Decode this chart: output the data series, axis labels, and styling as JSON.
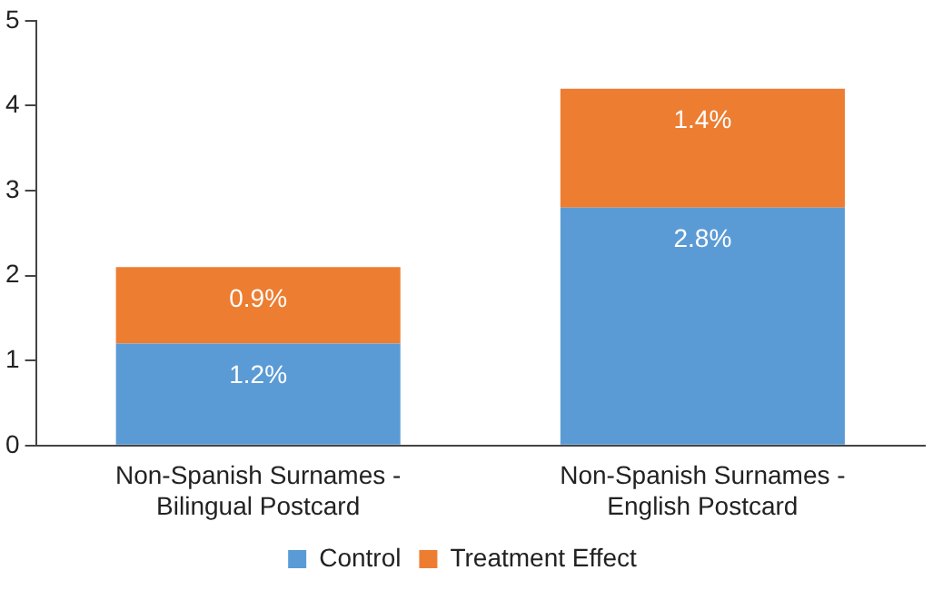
{
  "chart_data": {
    "type": "bar",
    "stacked": true,
    "categories": [
      "Non-Spanish Surnames - Bilingual Postcard",
      "Non-Spanish Surnames - English Postcard"
    ],
    "series": [
      {
        "name": "Control",
        "color": "#5b9bd5",
        "values": [
          1.2,
          2.8
        ],
        "value_labels": [
          "1.2%",
          "2.8%"
        ]
      },
      {
        "name": "Treatment Effect",
        "color": "#ed7d31",
        "values": [
          0.9,
          1.4
        ],
        "value_labels": [
          "0.9%",
          "1.4%"
        ]
      }
    ],
    "ylim": [
      0,
      5
    ],
    "yticks": [
      0,
      1,
      2,
      3,
      4,
      5
    ],
    "grid": false,
    "legend": "bottom"
  }
}
